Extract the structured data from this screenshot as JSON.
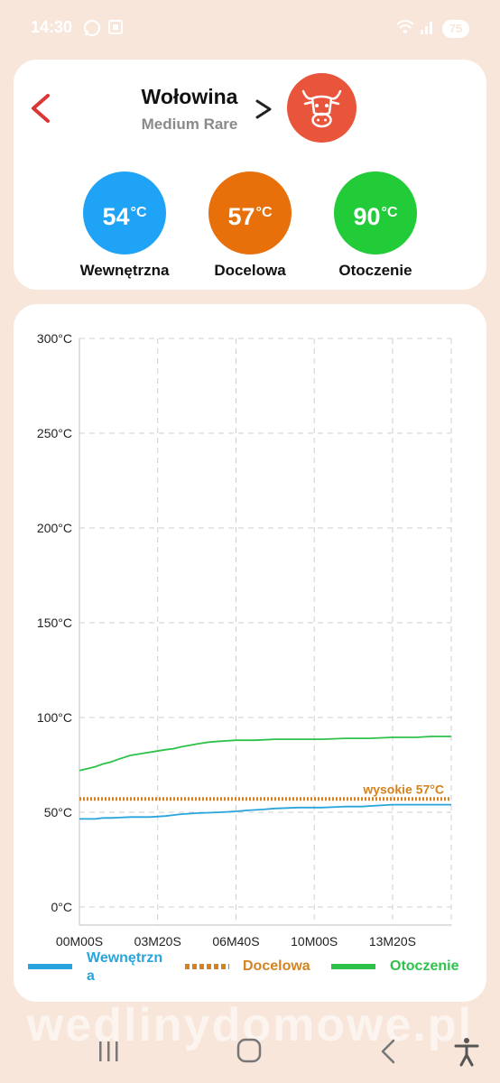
{
  "status_bar": {
    "time": "14:30",
    "battery": "75",
    "icons": [
      "whatsapp-icon",
      "screenshot-icon",
      "wifi-icon",
      "signal-icon",
      "battery-icon"
    ]
  },
  "header": {
    "title": "Wołowina",
    "subtitle": "Medium Rare",
    "back_icon": "chevron-left-icon",
    "next_icon": "chevron-right-icon",
    "badge_icon": "cow-head-icon",
    "badge_color": "#e8553b"
  },
  "temperatures": [
    {
      "value": "54",
      "unit": "°C",
      "label": "Wewnętrzna",
      "color": "#1fa3f7"
    },
    {
      "value": "57",
      "unit": "°C",
      "label": "Docelowa",
      "color": "#e8700a"
    },
    {
      "value": "90",
      "unit": "°C",
      "label": "Otoczenie",
      "color": "#22cc38"
    }
  ],
  "chart_data": {
    "type": "line",
    "y_ticks": [
      "0°C",
      "50°C",
      "100°C",
      "150°C",
      "200°C",
      "250°C",
      "300°C"
    ],
    "ylim": [
      0,
      300
    ],
    "x_ticks": [
      "00M00S",
      "03M20S",
      "06M40S",
      "10M00S",
      "13M20S"
    ],
    "x_range_seconds": [
      0,
      950
    ],
    "grid": true,
    "legend_position": "bottom",
    "annotation": "wysokie 57°C",
    "series": [
      {
        "name": "Wewnętrzna",
        "legend_label": "Wewnętrzn\na",
        "color": "#2aa4dc",
        "style": "solid",
        "x": [
          0,
          40,
          60,
          80,
          130,
          180,
          220,
          240,
          260,
          300,
          360,
          400,
          430,
          470,
          500,
          560,
          620,
          680,
          720,
          760,
          800,
          850,
          900,
          950
        ],
        "y": [
          46.5,
          46.5,
          47,
          47,
          47.5,
          47.5,
          48,
          48.5,
          49,
          49.5,
          50,
          50.5,
          51,
          51.5,
          52,
          52.5,
          52.5,
          53,
          53,
          53.5,
          54,
          54,
          54,
          54
        ]
      },
      {
        "name": "Docelowa",
        "color": "#d4831f",
        "style": "dotted",
        "x": [
          0,
          950
        ],
        "y": [
          57,
          57
        ]
      },
      {
        "name": "Otoczenie",
        "color": "#2ec24a",
        "style": "solid",
        "x": [
          0,
          20,
          40,
          60,
          80,
          100,
          130,
          160,
          190,
          220,
          240,
          260,
          300,
          330,
          360,
          400,
          450,
          500,
          560,
          620,
          680,
          740,
          800,
          860,
          900,
          950
        ],
        "y": [
          72,
          73,
          74,
          75.5,
          76.5,
          78,
          80,
          81,
          82,
          83,
          83.5,
          84.5,
          86,
          87,
          87.5,
          88,
          88,
          88.5,
          88.5,
          88.5,
          89,
          89,
          89.5,
          89.5,
          90,
          90
        ]
      }
    ],
    "target_line": 57
  },
  "legend": [
    {
      "label": "Wewnętrzn",
      "label_line2": "a",
      "color": "#2aa4dc"
    },
    {
      "label": "Docelowa",
      "color": "#d4831f"
    },
    {
      "label": "Otoczenie",
      "color": "#2ec24a"
    }
  ],
  "watermark": "wedlinydomowe.pl",
  "nav": [
    "recent-apps-icon",
    "home-icon",
    "back-icon",
    "accessibility-icon"
  ]
}
